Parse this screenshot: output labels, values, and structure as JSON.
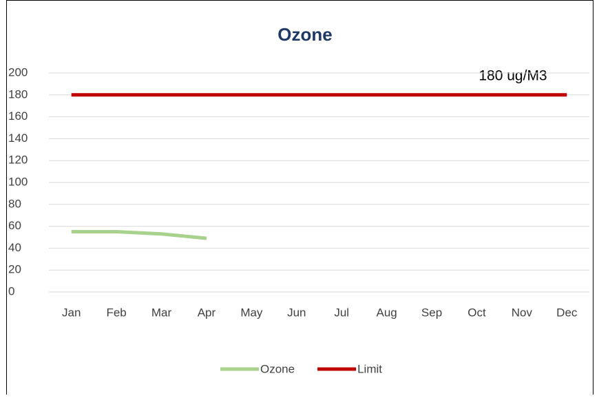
{
  "chart_data": {
    "type": "line",
    "title": "Ozone",
    "categories": [
      "Jan",
      "Feb",
      "Mar",
      "Apr",
      "May",
      "Jun",
      "Jul",
      "Aug",
      "Sep",
      "Oct",
      "Nov",
      "Dec"
    ],
    "series": [
      {
        "name": "Ozone",
        "color": "#a9d18e",
        "values": [
          55,
          55,
          53,
          49,
          null,
          null,
          null,
          null,
          null,
          null,
          null,
          null
        ]
      },
      {
        "name": "Limit",
        "color": "#c00000",
        "values": [
          180,
          180,
          180,
          180,
          180,
          180,
          180,
          180,
          180,
          180,
          180,
          180
        ]
      }
    ],
    "annotation": "180 ug/M3",
    "ylim": [
      0,
      200
    ],
    "yticks": [
      0,
      20,
      40,
      60,
      80,
      100,
      120,
      140,
      160,
      180,
      200
    ],
    "grid": true,
    "legend": "bottom"
  }
}
